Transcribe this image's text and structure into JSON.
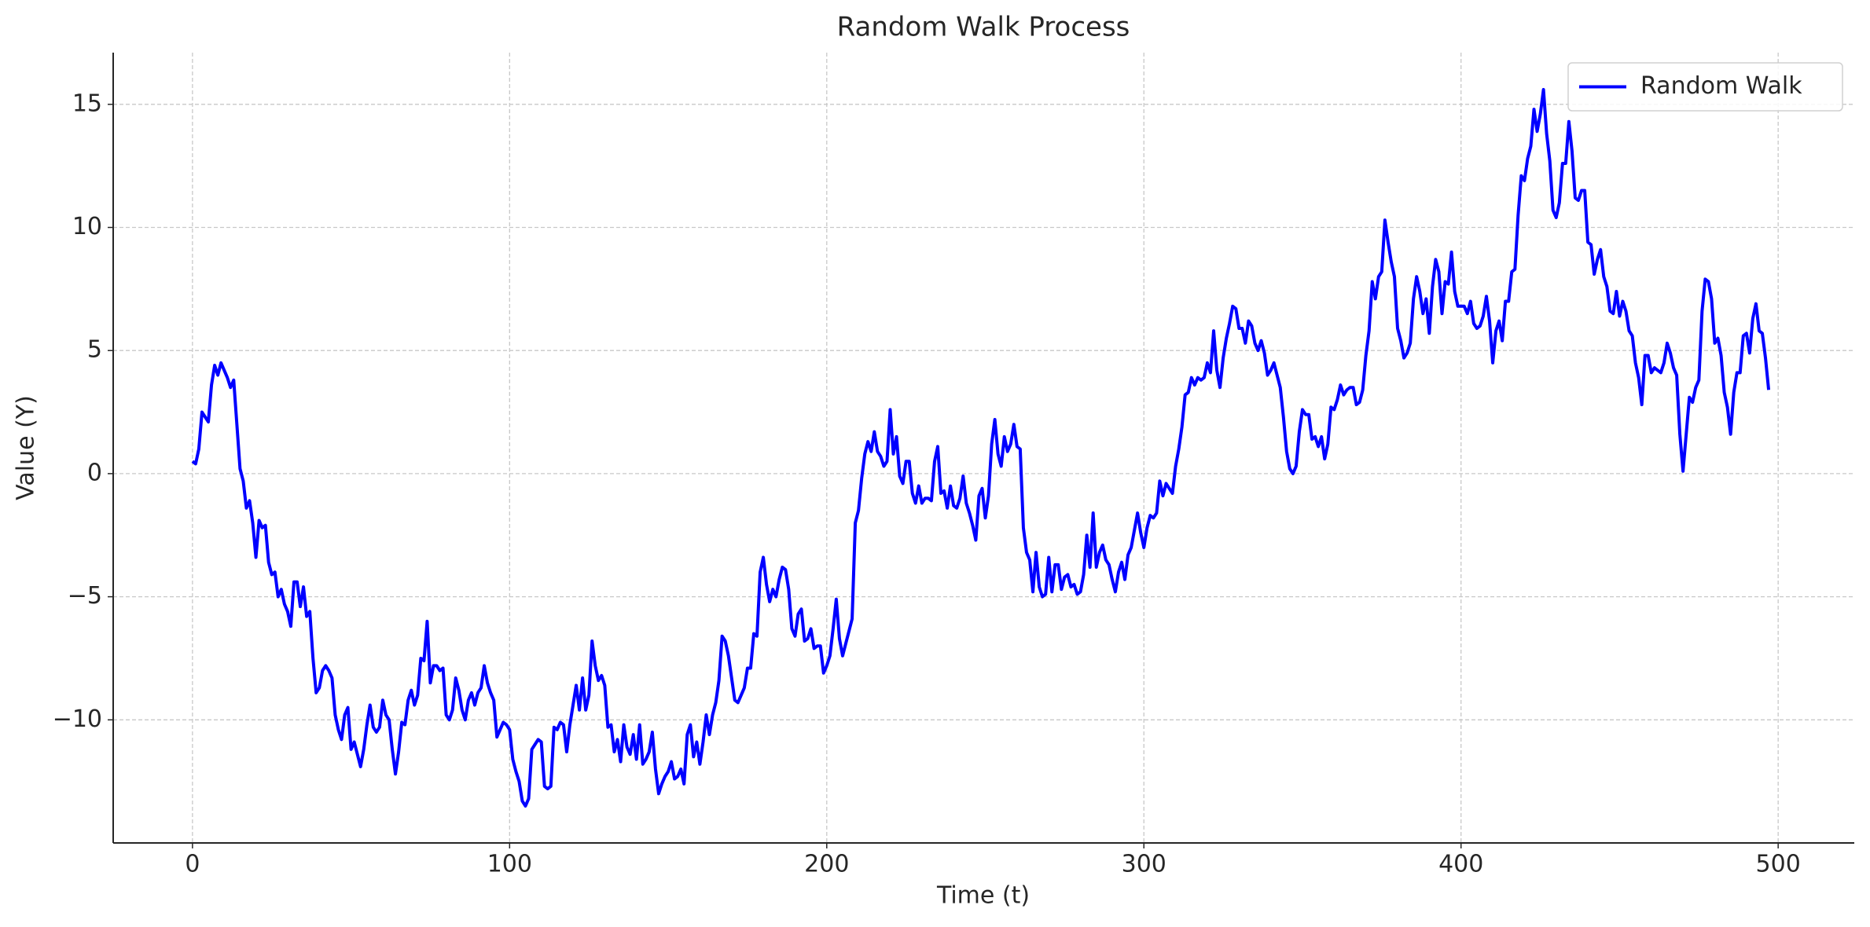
{
  "chart_data": {
    "type": "line",
    "title": "Random Walk Process",
    "x_label": "Time (t)",
    "y_label": "Value (Y)",
    "x": [
      0,
      1,
      2,
      3,
      4,
      5,
      6,
      7,
      8,
      9,
      10,
      11,
      12,
      13,
      14,
      15,
      16,
      17,
      18,
      19,
      20,
      21,
      22,
      23,
      24,
      25,
      26,
      27,
      28,
      29,
      30,
      31,
      32,
      33,
      34,
      35,
      36,
      37,
      38,
      39,
      40,
      41,
      42,
      43,
      44,
      45,
      46,
      47,
      48,
      49,
      50,
      51,
      52,
      53,
      54,
      55,
      56,
      57,
      58,
      59,
      60,
      61,
      62,
      63,
      64,
      65,
      66,
      67,
      68,
      69,
      70,
      71,
      72,
      73,
      74,
      75,
      76,
      77,
      78,
      79,
      80,
      81,
      82,
      83,
      84,
      85,
      86,
      87,
      88,
      89,
      90,
      91,
      92,
      93,
      94,
      95,
      96,
      97,
      98,
      99,
      100,
      101,
      102,
      103,
      104,
      105,
      106,
      107,
      108,
      109,
      110,
      111,
      112,
      113,
      114,
      115,
      116,
      117,
      118,
      119,
      120,
      121,
      122,
      123,
      124,
      125,
      126,
      127,
      128,
      129,
      130,
      131,
      132,
      133,
      134,
      135,
      136,
      137,
      138,
      139,
      140,
      141,
      142,
      143,
      144,
      145,
      146,
      147,
      148,
      149,
      150,
      151,
      152,
      153,
      154,
      155,
      156,
      157,
      158,
      159,
      160,
      161,
      162,
      163,
      164,
      165,
      166,
      167,
      168,
      169,
      170,
      171,
      172,
      173,
      174,
      175,
      176,
      177,
      178,
      179,
      180,
      181,
      182,
      183,
      184,
      185,
      186,
      187,
      188,
      189,
      190,
      191,
      192,
      193,
      194,
      195,
      196,
      197,
      198,
      199,
      200,
      201,
      202,
      203,
      204,
      205,
      206,
      207,
      208,
      209,
      210,
      211,
      212,
      213,
      214,
      215,
      216,
      217,
      218,
      219,
      220,
      221,
      222,
      223,
      224,
      225,
      226,
      227,
      228,
      229,
      230,
      231,
      232,
      233,
      234,
      235,
      236,
      237,
      238,
      239,
      240,
      241,
      242,
      243,
      244,
      245,
      246,
      247,
      248,
      249,
      250,
      251,
      252,
      253,
      254,
      255,
      256,
      257,
      258,
      259,
      260,
      261,
      262,
      263,
      264,
      265,
      266,
      267,
      268,
      269,
      270,
      271,
      272,
      273,
      274,
      275,
      276,
      277,
      278,
      279,
      280,
      281,
      282,
      283,
      284,
      285,
      286,
      287,
      288,
      289,
      290,
      291,
      292,
      293,
      294,
      295,
      296,
      297,
      298,
      299,
      300,
      301,
      302,
      303,
      304,
      305,
      306,
      307,
      308,
      309,
      310,
      311,
      312,
      313,
      314,
      315,
      316,
      317,
      318,
      319,
      320,
      321,
      322,
      323,
      324,
      325,
      326,
      327,
      328,
      329,
      330,
      331,
      332,
      333,
      334,
      335,
      336,
      337,
      338,
      339,
      340,
      341,
      342,
      343,
      344,
      345,
      346,
      347,
      348,
      349,
      350,
      351,
      352,
      353,
      354,
      355,
      356,
      357,
      358,
      359,
      360,
      361,
      362,
      363,
      364,
      365,
      366,
      367,
      368,
      369,
      370,
      371,
      372,
      373,
      374,
      375,
      376,
      377,
      378,
      379,
      380,
      381,
      382,
      383,
      384,
      385,
      386,
      387,
      388,
      389,
      390,
      391,
      392,
      393,
      394,
      395,
      396,
      397,
      398,
      399,
      400,
      401,
      402,
      403,
      404,
      405,
      406,
      407,
      408,
      409,
      410,
      411,
      412,
      413,
      414,
      415,
      416,
      417,
      418,
      419,
      420,
      421,
      422,
      423,
      424,
      425,
      426,
      427,
      428,
      429,
      430,
      431,
      432,
      433,
      434,
      435,
      436,
      437,
      438,
      439,
      440,
      441,
      442,
      443,
      444,
      445,
      446,
      447,
      448,
      449,
      450,
      451,
      452,
      453,
      454,
      455,
      456,
      457,
      458,
      459,
      460,
      461,
      462,
      463,
      464,
      465,
      466,
      467,
      468,
      469,
      470,
      471,
      472,
      473,
      474,
      475,
      476,
      477,
      478,
      479,
      480,
      481,
      482,
      483,
      484,
      485,
      486,
      487,
      488,
      489,
      490,
      491,
      492,
      493,
      494,
      495,
      496,
      497
    ],
    "series": [
      {
        "name": "Random Walk",
        "color": "#0000ff",
        "values": [
          0.5,
          0.4,
          1.0,
          2.5,
          2.3,
          2.1,
          3.6,
          4.4,
          4.0,
          4.5,
          4.2,
          3.9,
          3.5,
          3.8,
          2.0,
          0.2,
          -0.3,
          -1.4,
          -1.1,
          -2.0,
          -3.4,
          -1.9,
          -2.2,
          -2.1,
          -3.6,
          -4.1,
          -4.0,
          -5.0,
          -4.7,
          -5.3,
          -5.6,
          -6.2,
          -4.4,
          -4.4,
          -5.4,
          -4.6,
          -5.8,
          -5.6,
          -7.5,
          -8.9,
          -8.7,
          -8.0,
          -7.8,
          -8.0,
          -8.3,
          -9.8,
          -10.4,
          -10.8,
          -9.8,
          -9.5,
          -11.2,
          -10.9,
          -11.4,
          -11.9,
          -11.2,
          -10.2,
          -9.4,
          -10.3,
          -10.5,
          -10.3,
          -9.2,
          -9.8,
          -10.0,
          -11.2,
          -12.2,
          -11.3,
          -10.1,
          -10.2,
          -9.2,
          -8.8,
          -9.4,
          -9.0,
          -7.5,
          -7.6,
          -6.0,
          -8.5,
          -7.8,
          -7.8,
          -8.0,
          -7.9,
          -9.8,
          -10.0,
          -9.6,
          -8.3,
          -8.8,
          -9.6,
          -10.0,
          -9.2,
          -8.9,
          -9.4,
          -8.9,
          -8.7,
          -7.8,
          -8.5,
          -8.9,
          -9.2,
          -10.7,
          -10.4,
          -10.1,
          -10.2,
          -10.4,
          -11.6,
          -12.1,
          -12.5,
          -13.3,
          -13.5,
          -13.2,
          -11.2,
          -11.0,
          -10.8,
          -10.9,
          -12.7,
          -12.8,
          -12.7,
          -10.3,
          -10.4,
          -10.1,
          -10.2,
          -11.3,
          -10.2,
          -9.4,
          -8.6,
          -9.6,
          -8.3,
          -9.6,
          -9.0,
          -6.8,
          -7.8,
          -8.4,
          -8.2,
          -8.6,
          -10.3,
          -10.2,
          -11.3,
          -10.8,
          -11.7,
          -10.2,
          -11.1,
          -11.4,
          -10.6,
          -11.6,
          -10.2,
          -11.8,
          -11.6,
          -11.3,
          -10.5,
          -12.0,
          -13.0,
          -12.6,
          -12.3,
          -12.1,
          -11.7,
          -12.4,
          -12.3,
          -12.0,
          -12.6,
          -10.6,
          -10.2,
          -11.5,
          -10.9,
          -11.8,
          -10.9,
          -9.8,
          -10.6,
          -9.8,
          -9.3,
          -8.4,
          -6.6,
          -6.8,
          -7.4,
          -8.3,
          -9.2,
          -9.3,
          -9.0,
          -8.7,
          -7.9,
          -7.9,
          -6.5,
          -6.6,
          -4.0,
          -3.4,
          -4.5,
          -5.2,
          -4.7,
          -5.0,
          -4.3,
          -3.8,
          -3.9,
          -4.7,
          -6.3,
          -6.6,
          -5.7,
          -5.5,
          -6.8,
          -6.7,
          -6.3,
          -7.1,
          -7.0,
          -7.0,
          -8.1,
          -7.8,
          -7.4,
          -6.3,
          -5.1,
          -6.7,
          -7.4,
          -6.9,
          -6.4,
          -5.9,
          -2.0,
          -1.5,
          -0.2,
          0.8,
          1.3,
          0.9,
          1.7,
          0.9,
          0.7,
          0.3,
          0.5,
          2.6,
          0.8,
          1.5,
          -0.1,
          -0.4,
          0.5,
          0.5,
          -0.8,
          -1.2,
          -0.5,
          -1.2,
          -1.0,
          -1.0,
          -1.1,
          0.5,
          1.1,
          -0.8,
          -0.7,
          -1.4,
          -0.5,
          -1.3,
          -1.4,
          -1.0,
          -0.1,
          -1.2,
          -1.6,
          -2.1,
          -2.7,
          -0.9,
          -0.6,
          -1.8,
          -0.9,
          1.2,
          2.2,
          0.8,
          0.3,
          1.5,
          0.9,
          1.2,
          2.0,
          1.1,
          1.0,
          -2.2,
          -3.2,
          -3.5,
          -4.8,
          -3.2,
          -4.6,
          -5.0,
          -4.9,
          -3.4,
          -4.8,
          -3.7,
          -3.7,
          -4.7,
          -4.2,
          -4.1,
          -4.6,
          -4.5,
          -4.9,
          -4.8,
          -4.1,
          -2.5,
          -3.8,
          -1.6,
          -3.8,
          -3.2,
          -2.9,
          -3.5,
          -3.7,
          -4.3,
          -4.8,
          -4.0,
          -3.6,
          -4.3,
          -3.3,
          -3.0,
          -2.3,
          -1.6,
          -2.4,
          -3.0,
          -2.2,
          -1.7,
          -1.8,
          -1.6,
          -0.3,
          -0.9,
          -0.4,
          -0.6,
          -0.8,
          0.3,
          1.0,
          1.9,
          3.2,
          3.3,
          3.9,
          3.6,
          3.9,
          3.8,
          3.9,
          4.5,
          4.1,
          5.8,
          4.2,
          3.5,
          4.7,
          5.5,
          6.1,
          6.8,
          6.7,
          5.9,
          5.9,
          5.3,
          6.2,
          6.0,
          5.3,
          5.0,
          5.4,
          4.9,
          4.0,
          4.2,
          4.5,
          4.0,
          3.5,
          2.3,
          0.9,
          0.2,
          0.0,
          0.3,
          1.7,
          2.6,
          2.4,
          2.4,
          1.4,
          1.5,
          1.1,
          1.5,
          0.6,
          1.2,
          2.7,
          2.6,
          3.0,
          3.6,
          3.2,
          3.4,
          3.5,
          3.5,
          2.8,
          2.9,
          3.4,
          4.8,
          5.8,
          7.8,
          7.1,
          8.0,
          8.2,
          10.3,
          9.4,
          8.6,
          8.0,
          5.9,
          5.4,
          4.7,
          4.9,
          5.3,
          7.1,
          8.0,
          7.4,
          6.5,
          7.1,
          5.7,
          7.6,
          8.7,
          8.2,
          6.5,
          7.8,
          7.7,
          9.0,
          7.4,
          6.8,
          6.8,
          6.8,
          6.5,
          7.0,
          6.1,
          5.9,
          6.0,
          6.4,
          7.2,
          6.2,
          4.5,
          5.8,
          6.2,
          5.4,
          7.0,
          7.0,
          8.2,
          8.3,
          10.5,
          12.1,
          11.9,
          12.8,
          13.3,
          14.8,
          13.9,
          14.6,
          15.6,
          13.8,
          12.7,
          10.7,
          10.4,
          11.0,
          12.6,
          12.6,
          14.3,
          13.1,
          11.2,
          11.1,
          11.5,
          11.5,
          9.4,
          9.3,
          8.1,
          8.7,
          9.1,
          8.0,
          7.6,
          6.6,
          6.5,
          7.4,
          6.4,
          7.0,
          6.6,
          5.8,
          5.6,
          4.5,
          3.9,
          2.8,
          4.8,
          4.8,
          4.1,
          4.3,
          4.2,
          4.1,
          4.5,
          5.3,
          4.9,
          4.3,
          4.0,
          1.6,
          0.1,
          1.6,
          3.1,
          2.9,
          3.5,
          3.8,
          6.6,
          7.9,
          7.8,
          7.1,
          5.3,
          5.5,
          4.8,
          3.3,
          2.7,
          1.6,
          3.3,
          4.1,
          4.1,
          5.6,
          5.7,
          4.9,
          6.3,
          6.9,
          5.8,
          5.7,
          4.7,
          3.4
        ]
      }
    ],
    "xlim": [
      -25,
      524
    ],
    "ylim": [
      -15,
      17.1
    ],
    "xticks": [
      0,
      100,
      200,
      300,
      400,
      500
    ],
    "yticks": [
      {
        "value": -10,
        "label": "−10"
      },
      {
        "value": -5,
        "label": "−5"
      },
      0,
      5,
      10,
      15
    ],
    "grid": true,
    "legend": "upper right"
  }
}
